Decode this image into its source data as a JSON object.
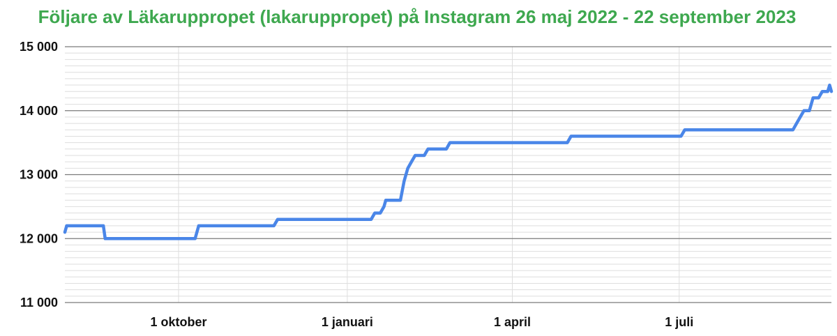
{
  "chart_data": {
    "type": "line",
    "title": "Följare av Läkaruppropet (lakaruppropet) på Instagram 26 maj 2022 - 22 september 2023",
    "xlabel": "",
    "ylabel": "",
    "ylim": [
      11000,
      15000
    ],
    "yticks": [
      {
        "value": 15000,
        "label": "15 000"
      },
      {
        "value": 14000,
        "label": "14 000"
      },
      {
        "value": 13000,
        "label": "13 000"
      },
      {
        "value": 12000,
        "label": "12 000"
      },
      {
        "value": 11000,
        "label": "11 000"
      }
    ],
    "xlim": [
      "2022-07-31",
      "2023-09-22"
    ],
    "xticks": [
      {
        "value": "2022-10-01",
        "label": "1 oktober"
      },
      {
        "value": "2023-01-01",
        "label": "1 januari"
      },
      {
        "value": "2023-04-01",
        "label": "1 april"
      },
      {
        "value": "2023-07-01",
        "label": "1 juli"
      }
    ],
    "grid": {
      "major": true,
      "minor": true
    },
    "colors": {
      "title": "#3ea84f",
      "line": "#4a86e8",
      "grid_major": "#7a7a7a",
      "grid_minor": "#dedede"
    },
    "series": [
      {
        "points": [
          [
            "2022-07-31",
            12100
          ],
          [
            "2022-08-01",
            12200
          ],
          [
            "2022-08-21",
            12200
          ],
          [
            "2022-08-22",
            12000
          ],
          [
            "2022-10-10",
            12000
          ],
          [
            "2022-10-12",
            12200
          ],
          [
            "2022-11-22",
            12200
          ],
          [
            "2022-11-24",
            12300
          ],
          [
            "2023-01-14",
            12300
          ],
          [
            "2023-01-16",
            12400
          ],
          [
            "2023-01-19",
            12400
          ],
          [
            "2023-01-21",
            12500
          ],
          [
            "2023-01-22",
            12600
          ],
          [
            "2023-01-30",
            12600
          ],
          [
            "2023-02-01",
            12900
          ],
          [
            "2023-02-03",
            13100
          ],
          [
            "2023-02-05",
            13200
          ],
          [
            "2023-02-07",
            13300
          ],
          [
            "2023-02-12",
            13300
          ],
          [
            "2023-02-14",
            13400
          ],
          [
            "2023-02-24",
            13400
          ],
          [
            "2023-02-26",
            13500
          ],
          [
            "2023-05-01",
            13500
          ],
          [
            "2023-05-03",
            13600
          ],
          [
            "2023-07-02",
            13600
          ],
          [
            "2023-07-04",
            13700
          ],
          [
            "2023-09-01",
            13700
          ],
          [
            "2023-09-03",
            13800
          ],
          [
            "2023-09-05",
            13900
          ],
          [
            "2023-09-07",
            14000
          ],
          [
            "2023-09-10",
            14000
          ],
          [
            "2023-09-12",
            14200
          ],
          [
            "2023-09-15",
            14200
          ],
          [
            "2023-09-17",
            14300
          ],
          [
            "2023-09-20",
            14300
          ],
          [
            "2023-09-21",
            14400
          ],
          [
            "2023-09-22",
            14300
          ]
        ]
      }
    ]
  }
}
